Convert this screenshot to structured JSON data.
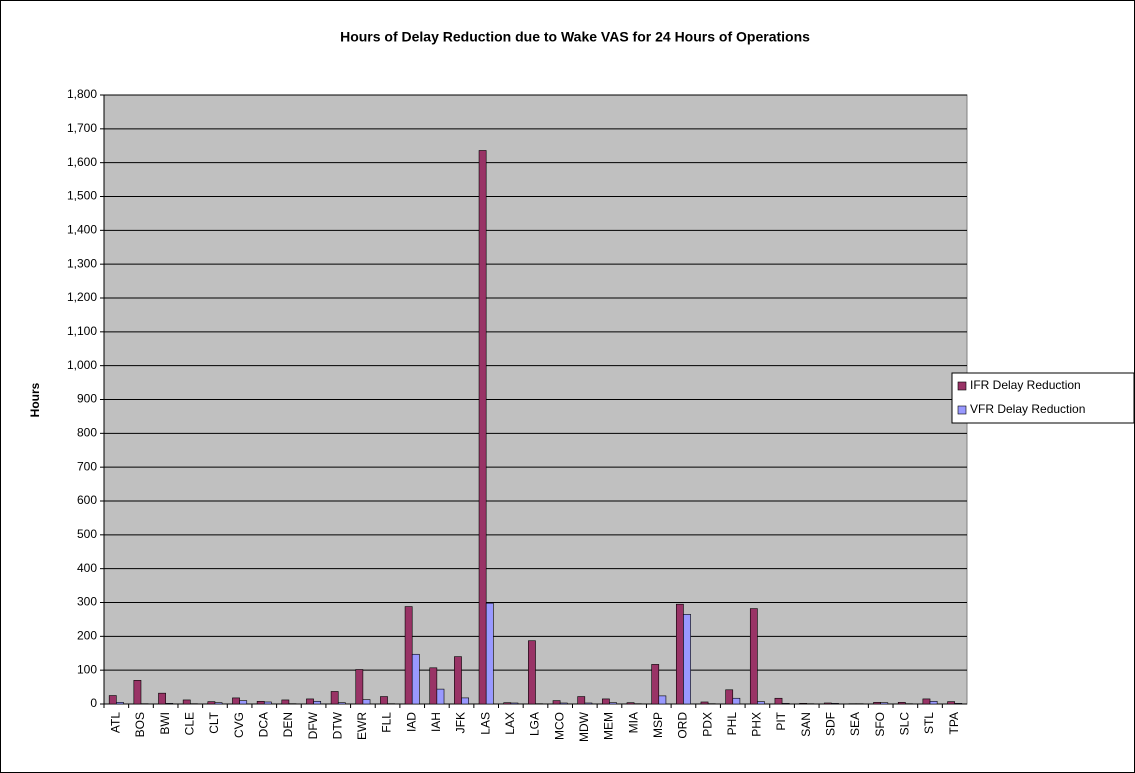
{
  "chart_data": {
    "type": "bar",
    "title": "Hours of Delay Reduction due to Wake VAS for 24 Hours of Operations",
    "y_label": "Hours",
    "categories": [
      "ATL",
      "BOS",
      "BWI",
      "CLE",
      "CLT",
      "CVG",
      "DCA",
      "DEN",
      "DFW",
      "DTW",
      "EWR",
      "FLL",
      "IAD",
      "IAH",
      "JFK",
      "LAS",
      "LAX",
      "LGA",
      "MCO",
      "MDW",
      "MEM",
      "MIA",
      "MSP",
      "ORD",
      "PDX",
      "PHL",
      "PHX",
      "PIT",
      "SAN",
      "SDF",
      "SEA",
      "SFO",
      "SLC",
      "STL",
      "TPA"
    ],
    "series": [
      {
        "name": "IFR Delay Reduction",
        "color": "#993366",
        "values": [
          25,
          70,
          32,
          12,
          7,
          18,
          8,
          12,
          15,
          37,
          102,
          22,
          288,
          107,
          140,
          1636,
          4,
          187,
          10,
          22,
          15,
          4,
          117,
          295,
          6,
          42,
          282,
          17,
          2,
          3,
          1,
          5,
          5,
          15,
          7
        ]
      },
      {
        "name": "VFR Delay Reduction",
        "color": "#9999ff",
        "values": [
          5,
          1,
          2,
          1,
          4,
          10,
          6,
          1,
          8,
          4,
          13,
          1,
          147,
          44,
          18,
          298,
          3,
          1,
          3,
          3,
          4,
          1,
          24,
          265,
          1,
          17,
          7,
          2,
          1,
          2,
          1,
          4,
          1,
          8,
          2
        ]
      }
    ],
    "ylim": [
      0,
      1800
    ],
    "yticks": [
      0,
      100,
      200,
      300,
      400,
      500,
      600,
      700,
      800,
      900,
      {
        "value": 1000,
        "label": "1,000"
      },
      {
        "value": 1100,
        "label": "1,100"
      },
      {
        "value": 1200,
        "label": "1,200"
      },
      {
        "value": 1300,
        "label": "1,300"
      },
      {
        "value": 1400,
        "label": "1,400"
      },
      {
        "value": 1500,
        "label": "1,500"
      },
      {
        "value": 1600,
        "label": "1,600"
      },
      {
        "value": 1700,
        "label": "1,700"
      },
      {
        "value": 1800,
        "label": "1,800"
      }
    ],
    "grid": true,
    "legend": "right"
  }
}
